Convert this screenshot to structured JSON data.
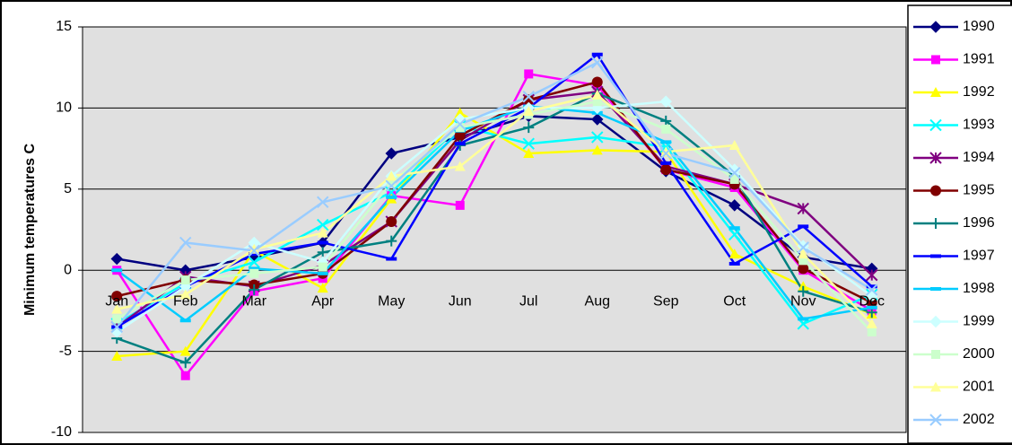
{
  "chart_data": {
    "type": "line",
    "y_label": "Minimum temperatures C",
    "categories": [
      "Jan",
      "Feb",
      "Mar",
      "Apr",
      "May",
      "Jun",
      "Jul",
      "Aug",
      "Sep",
      "Oct",
      "Nov",
      "Dec"
    ],
    "ylim": [
      -10,
      15
    ],
    "yticks": [
      -10,
      -5,
      0,
      5,
      10,
      15
    ],
    "grid": true,
    "legend": "right",
    "series": [
      {
        "name": "1990",
        "color": "#000080",
        "marker": "diamond",
        "values": [
          0.7,
          0,
          0.8,
          1.7,
          7.2,
          8.2,
          9.5,
          9.3,
          6.1,
          4.0,
          0.8,
          0.1
        ]
      },
      {
        "name": "1991",
        "color": "#ff00ff",
        "marker": "square",
        "values": [
          0,
          -6.5,
          -1.3,
          -0.5,
          4.6,
          4.0,
          12.1,
          11.4,
          6.2,
          5.1,
          0,
          -2.5
        ]
      },
      {
        "name": "1992",
        "color": "#ffff00",
        "marker": "triangle",
        "values": [
          -5.3,
          -5.0,
          1.2,
          -1.1,
          4.4,
          9.7,
          7.2,
          7.4,
          7.3,
          1.0,
          -1.0,
          -2.7
        ]
      },
      {
        "name": "1993",
        "color": "#00ffff",
        "marker": "x",
        "values": [
          -3.3,
          -0.8,
          0.5,
          2.8,
          4.8,
          8.9,
          7.8,
          8.2,
          7.6,
          2.2,
          -3.3,
          -1.5
        ]
      },
      {
        "name": "1994",
        "color": "#800080",
        "marker": "star",
        "values": [
          -3.5,
          -0.4,
          -1.0,
          0.3,
          3.0,
          8.0,
          10.5,
          11.0,
          6.4,
          5.3,
          3.8,
          -0.3
        ]
      },
      {
        "name": "1995",
        "color": "#800000",
        "marker": "circle",
        "values": [
          -1.6,
          -0.6,
          -0.9,
          -0.2,
          3.0,
          8.3,
          10.5,
          11.6,
          6.2,
          5.3,
          0.1,
          -2.0
        ]
      },
      {
        "name": "1996",
        "color": "#008080",
        "marker": "plus",
        "values": [
          -4.2,
          -5.7,
          -1.2,
          1.1,
          1.8,
          7.7,
          8.8,
          10.9,
          9.2,
          5.8,
          -1.3,
          -2.6
        ]
      },
      {
        "name": "1997",
        "color": "#0000ff",
        "marker": "dash",
        "values": [
          -3.5,
          -1.0,
          1.0,
          1.7,
          0.7,
          7.8,
          10.0,
          13.3,
          6.6,
          0.4,
          2.7,
          -1.0
        ]
      },
      {
        "name": "1998",
        "color": "#00ccff",
        "marker": "dash",
        "values": [
          0.0,
          -3.1,
          0.1,
          -0.2,
          4.5,
          8.6,
          10.1,
          9.7,
          7.9,
          2.6,
          -3.0,
          -2.3
        ]
      },
      {
        "name": "1999",
        "color": "#ccffff",
        "marker": "diamond",
        "values": [
          -3.8,
          -1.0,
          1.7,
          0.5,
          5.8,
          9.3,
          10.0,
          10.0,
          10.4,
          6.2,
          1.5,
          -1.6
        ]
      },
      {
        "name": "2000",
        "color": "#ccffcc",
        "marker": "square",
        "values": [
          -3.0,
          -0.6,
          -0.2,
          0.2,
          5.4,
          8.8,
          9.6,
          10.4,
          8.7,
          5.6,
          0.6,
          -3.8
        ]
      },
      {
        "name": "2001",
        "color": "#ffff99",
        "marker": "triangle",
        "values": [
          -2.4,
          -1.5,
          1.3,
          2.3,
          5.8,
          6.4,
          9.8,
          10.8,
          7.3,
          7.7,
          1.0,
          -3.3
        ]
      },
      {
        "name": "2002",
        "color": "#99ccff",
        "marker": "x",
        "values": [
          -3.5,
          1.7,
          1.2,
          4.2,
          5.2,
          9.0,
          10.7,
          12.8,
          7.2,
          6.0,
          1.4,
          -1.2
        ]
      }
    ]
  }
}
